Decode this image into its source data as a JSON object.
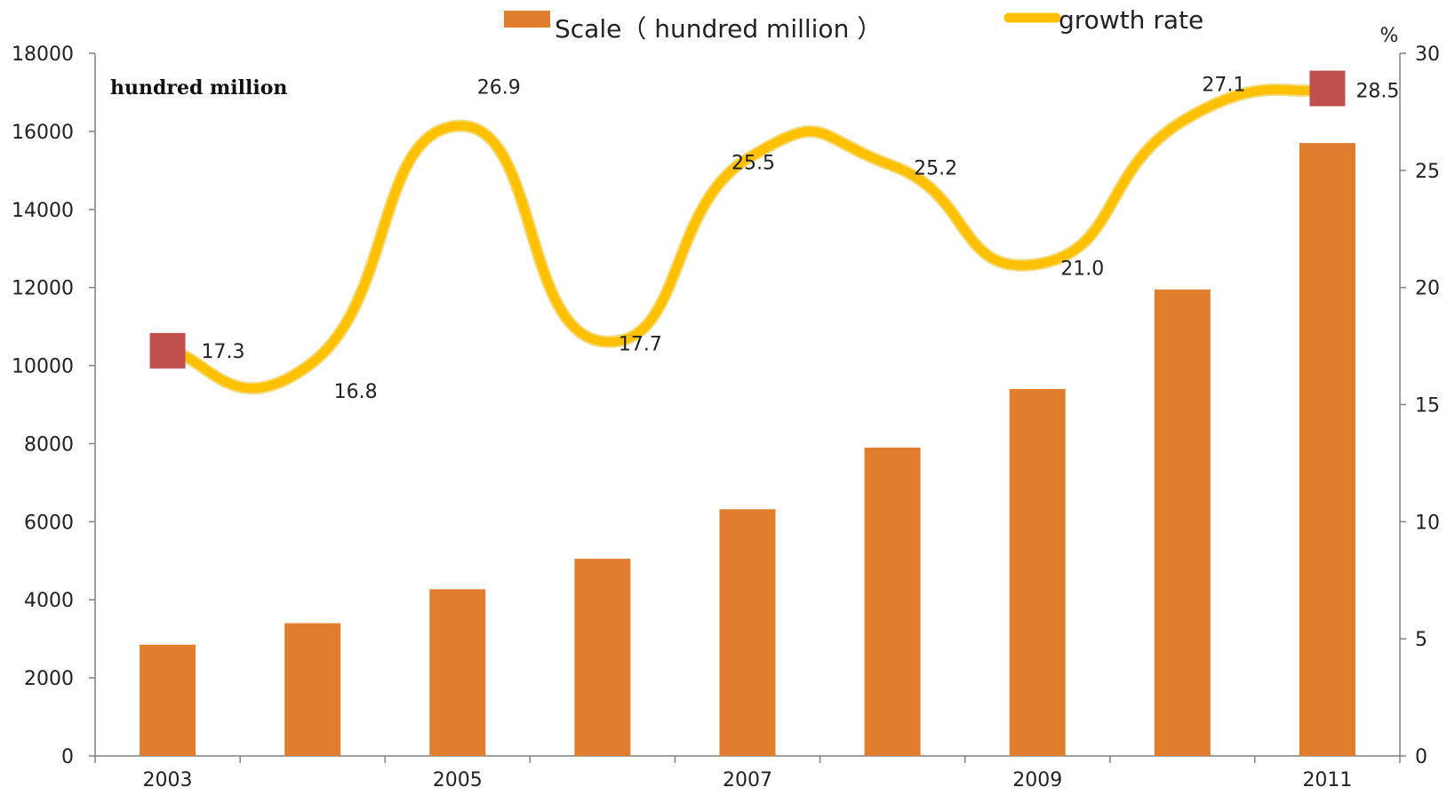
{
  "chart_data": {
    "type": "bar",
    "categories": [
      "2003",
      "2004",
      "2005",
      "2006",
      "2007",
      "2008",
      "2009",
      "2010",
      "2011"
    ],
    "x_tick_labels": [
      "2003",
      "2005",
      "2007",
      "2009",
      "2011"
    ],
    "series": [
      {
        "name": "Scale（ hundred million ）",
        "type": "bar",
        "axis": "left",
        "color": "#E07E2E",
        "values": [
          2850,
          3400,
          4270,
          5050,
          6320,
          7900,
          9400,
          11950,
          15700
        ]
      },
      {
        "name": "growth rate",
        "type": "line",
        "axis": "right",
        "color": "#FFC000",
        "values": [
          17.3,
          16.8,
          26.9,
          17.7,
          25.5,
          25.2,
          21.0,
          27.1,
          28.5
        ],
        "labels": [
          "17.3",
          "16.8",
          "26.9",
          "17.7",
          "25.5",
          "25.2",
          "21.0",
          "27.1",
          "28.5"
        ],
        "marker_color": "#C0504D",
        "marked_points": [
          0,
          8
        ]
      }
    ],
    "y_left": {
      "label": "hundred million",
      "ylim": [
        0,
        18000
      ],
      "ticks": [
        "0",
        "2000",
        "4000",
        "6000",
        "8000",
        "10000",
        "12000",
        "14000",
        "16000",
        "18000"
      ]
    },
    "y_right": {
      "label": "%",
      "ylim": [
        0,
        30
      ],
      "ticks": [
        "0",
        "5",
        "10",
        "15",
        "20",
        "25",
        "30"
      ]
    },
    "legend": "top-center",
    "grid": false
  }
}
